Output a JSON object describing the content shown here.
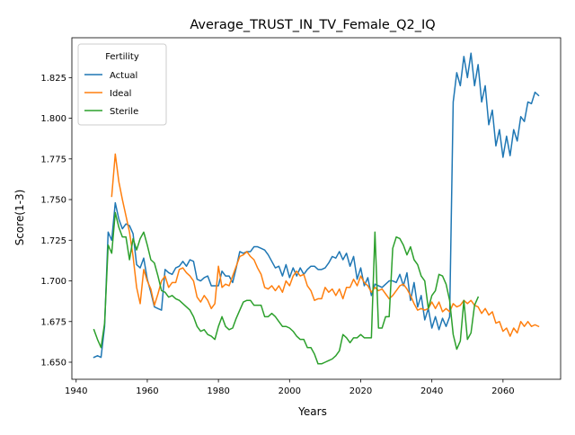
{
  "chart_data": {
    "type": "line",
    "title": "Average_TRUST_IN_TV_Female_Q2_IQ",
    "xlabel": "Years",
    "ylabel": "Score(1-3)",
    "xlim": [
      1938.8,
      2076.2
    ],
    "ylim": [
      1.6395,
      1.8495
    ],
    "xticks": [
      1940,
      1960,
      1980,
      2000,
      2020,
      2040,
      2060
    ],
    "yticks": [
      1.65,
      1.675,
      1.7,
      1.725,
      1.75,
      1.775,
      1.8,
      1.825
    ],
    "grid": false,
    "legend": {
      "title": "Fertility",
      "placement": "upper-left"
    },
    "series": [
      {
        "name": "Actual",
        "color": "#1f77b4",
        "x": [
          1945,
          1946,
          1947,
          1948,
          1949,
          1950,
          1951,
          1952,
          1953,
          1954,
          1955,
          1956,
          1957,
          1958,
          1959,
          1960,
          1961,
          1962,
          1963,
          1964,
          1965,
          1966,
          1967,
          1968,
          1969,
          1970,
          1971,
          1972,
          1973,
          1974,
          1975,
          1976,
          1977,
          1978,
          1979,
          1980,
          1981,
          1982,
          1983,
          1984,
          1985,
          1986,
          1987,
          1988,
          1989,
          1990,
          1991,
          1992,
          1993,
          1994,
          1995,
          1996,
          1997,
          1998,
          1999,
          2000,
          2001,
          2002,
          2003,
          2004,
          2005,
          2006,
          2007,
          2008,
          2009,
          2010,
          2011,
          2012,
          2013,
          2014,
          2015,
          2016,
          2017,
          2018,
          2019,
          2020,
          2021,
          2022,
          2023,
          2024,
          2025,
          2026,
          2027,
          2028,
          2029,
          2030,
          2031,
          2032,
          2033,
          2034,
          2035,
          2036,
          2037,
          2038,
          2039,
          2040,
          2041,
          2042,
          2043,
          2044,
          2045,
          2046,
          2047,
          2048,
          2049,
          2050,
          2051,
          2052,
          2053,
          2054,
          2055,
          2056,
          2057,
          2058,
          2059,
          2060,
          2061,
          2062,
          2063,
          2064,
          2065,
          2066,
          2067,
          2068,
          2069,
          2070
        ],
        "y": [
          1.653,
          1.654,
          1.653,
          1.672,
          1.73,
          1.725,
          1.748,
          1.738,
          1.732,
          1.735,
          1.734,
          1.729,
          1.71,
          1.708,
          1.714,
          1.701,
          1.693,
          1.684,
          1.683,
          1.682,
          1.707,
          1.705,
          1.704,
          1.708,
          1.709,
          1.712,
          1.709,
          1.713,
          1.712,
          1.701,
          1.7,
          1.702,
          1.703,
          1.697,
          1.697,
          1.697,
          1.706,
          1.703,
          1.703,
          1.699,
          1.708,
          1.718,
          1.717,
          1.718,
          1.718,
          1.721,
          1.721,
          1.72,
          1.719,
          1.716,
          1.712,
          1.708,
          1.709,
          1.703,
          1.71,
          1.702,
          1.708,
          1.703,
          1.708,
          1.704,
          1.707,
          1.709,
          1.709,
          1.707,
          1.707,
          1.708,
          1.711,
          1.715,
          1.714,
          1.718,
          1.713,
          1.717,
          1.709,
          1.715,
          1.701,
          1.708,
          1.697,
          1.702,
          1.691,
          1.698,
          1.697,
          1.696,
          1.698,
          1.7,
          1.7,
          1.699,
          1.704,
          1.697,
          1.705,
          1.688,
          1.699,
          1.684,
          1.691,
          1.676,
          1.683,
          1.671,
          1.678,
          1.67,
          1.677,
          1.672,
          1.678,
          1.81,
          1.828,
          1.82,
          1.838,
          1.825,
          1.84,
          1.82,
          1.833,
          1.81,
          1.82,
          1.796,
          1.805,
          1.783,
          1.793,
          1.776,
          1.789,
          1.777,
          1.793,
          1.786,
          1.801,
          1.798,
          1.81,
          1.809,
          1.816,
          1.814
        ]
      },
      {
        "name": "Ideal",
        "color": "#ff7f0e",
        "x": [
          1950,
          1951,
          1952,
          1953,
          1954,
          1955,
          1956,
          1957,
          1958,
          1959,
          1960,
          1961,
          1962,
          1963,
          1964,
          1965,
          1966,
          1967,
          1968,
          1969,
          1970,
          1971,
          1972,
          1973,
          1974,
          1975,
          1976,
          1977,
          1978,
          1979,
          1980,
          1981,
          1982,
          1983,
          1984,
          1985,
          1986,
          1987,
          1988,
          1989,
          1990,
          1991,
          1992,
          1993,
          1994,
          1995,
          1996,
          1997,
          1998,
          1999,
          2000,
          2001,
          2002,
          2003,
          2004,
          2005,
          2006,
          2007,
          2008,
          2009,
          2010,
          2011,
          2012,
          2013,
          2014,
          2015,
          2016,
          2017,
          2018,
          2019,
          2020,
          2021,
          2022,
          2023,
          2024,
          2025,
          2026,
          2027,
          2028,
          2029,
          2030,
          2031,
          2032,
          2033,
          2034,
          2035,
          2036,
          2037,
          2038,
          2039,
          2040,
          2041,
          2042,
          2043,
          2044,
          2045,
          2046,
          2047,
          2048,
          2049,
          2050,
          2051,
          2052,
          2053,
          2054,
          2055,
          2056,
          2057,
          2058,
          2059,
          2060,
          2061,
          2062,
          2063,
          2064,
          2065,
          2066,
          2067,
          2068,
          2069,
          2070
        ],
        "y": [
          1.752,
          1.778,
          1.761,
          1.75,
          1.74,
          1.73,
          1.715,
          1.696,
          1.686,
          1.707,
          1.7,
          1.695,
          1.685,
          1.692,
          1.7,
          1.703,
          1.696,
          1.699,
          1.699,
          1.707,
          1.708,
          1.705,
          1.703,
          1.7,
          1.69,
          1.687,
          1.691,
          1.688,
          1.683,
          1.686,
          1.709,
          1.696,
          1.698,
          1.697,
          1.703,
          1.709,
          1.715,
          1.716,
          1.718,
          1.715,
          1.713,
          1.708,
          1.704,
          1.696,
          1.695,
          1.697,
          1.694,
          1.697,
          1.693,
          1.7,
          1.697,
          1.703,
          1.706,
          1.703,
          1.704,
          1.697,
          1.694,
          1.688,
          1.689,
          1.689,
          1.696,
          1.693,
          1.695,
          1.691,
          1.695,
          1.689,
          1.696,
          1.696,
          1.701,
          1.697,
          1.703,
          1.699,
          1.697,
          1.693,
          1.696,
          1.694,
          1.695,
          1.692,
          1.689,
          1.691,
          1.694,
          1.697,
          1.698,
          1.695,
          1.691,
          1.686,
          1.682,
          1.683,
          1.682,
          1.683,
          1.687,
          1.683,
          1.687,
          1.681,
          1.683,
          1.681,
          1.686,
          1.684,
          1.685,
          1.688,
          1.686,
          1.688,
          1.685,
          1.684,
          1.68,
          1.683,
          1.679,
          1.681,
          1.674,
          1.675,
          1.669,
          1.671,
          1.666,
          1.671,
          1.668,
          1.675,
          1.672,
          1.675,
          1.672,
          1.673,
          1.672
        ]
      },
      {
        "name": "Sterile",
        "color": "#2ca02c",
        "x": [
          1945,
          1946,
          1947,
          1948,
          1949,
          1950,
          1951,
          1952,
          1953,
          1954,
          1955,
          1956,
          1957,
          1958,
          1959,
          1960,
          1961,
          1962,
          1963,
          1964,
          1965,
          1966,
          1967,
          1968,
          1969,
          1970,
          1971,
          1972,
          1973,
          1974,
          1975,
          1976,
          1977,
          1978,
          1979,
          1980,
          1981,
          1982,
          1983,
          1984,
          1985,
          1986,
          1987,
          1988,
          1989,
          1990,
          1991,
          1992,
          1993,
          1994,
          1995,
          1996,
          1997,
          1998,
          1999,
          2000,
          2001,
          2002,
          2003,
          2004,
          2005,
          2006,
          2007,
          2008,
          2009,
          2010,
          2011,
          2012,
          2013,
          2014,
          2015,
          2016,
          2017,
          2018,
          2019,
          2020,
          2021,
          2022,
          2023,
          2024,
          2025,
          2026,
          2027,
          2028,
          2029,
          2030,
          2031,
          2032,
          2033,
          2034,
          2035,
          2036,
          2037,
          2038,
          2039,
          2040,
          2041,
          2042,
          2043,
          2044,
          2045,
          2046,
          2047,
          2048,
          2049,
          2050,
          2051,
          2052,
          2053
        ],
        "y": [
          1.67,
          1.664,
          1.659,
          1.674,
          1.722,
          1.717,
          1.742,
          1.733,
          1.727,
          1.727,
          1.713,
          1.726,
          1.719,
          1.726,
          1.73,
          1.722,
          1.713,
          1.711,
          1.703,
          1.694,
          1.693,
          1.69,
          1.691,
          1.689,
          1.688,
          1.686,
          1.684,
          1.682,
          1.678,
          1.672,
          1.669,
          1.67,
          1.667,
          1.666,
          1.664,
          1.672,
          1.678,
          1.672,
          1.67,
          1.671,
          1.677,
          1.682,
          1.687,
          1.688,
          1.688,
          1.685,
          1.685,
          1.685,
          1.678,
          1.678,
          1.68,
          1.678,
          1.675,
          1.672,
          1.672,
          1.671,
          1.669,
          1.666,
          1.664,
          1.664,
          1.659,
          1.659,
          1.655,
          1.649,
          1.649,
          1.65,
          1.651,
          1.652,
          1.654,
          1.657,
          1.667,
          1.665,
          1.662,
          1.665,
          1.665,
          1.667,
          1.665,
          1.665,
          1.665,
          1.73,
          1.671,
          1.671,
          1.678,
          1.678,
          1.72,
          1.727,
          1.726,
          1.722,
          1.716,
          1.721,
          1.713,
          1.71,
          1.703,
          1.7,
          1.683,
          1.691,
          1.694,
          1.704,
          1.703,
          1.698,
          1.688,
          1.667,
          1.658,
          1.663,
          1.688,
          1.664,
          1.668,
          1.685,
          1.69
        ]
      }
    ]
  }
}
